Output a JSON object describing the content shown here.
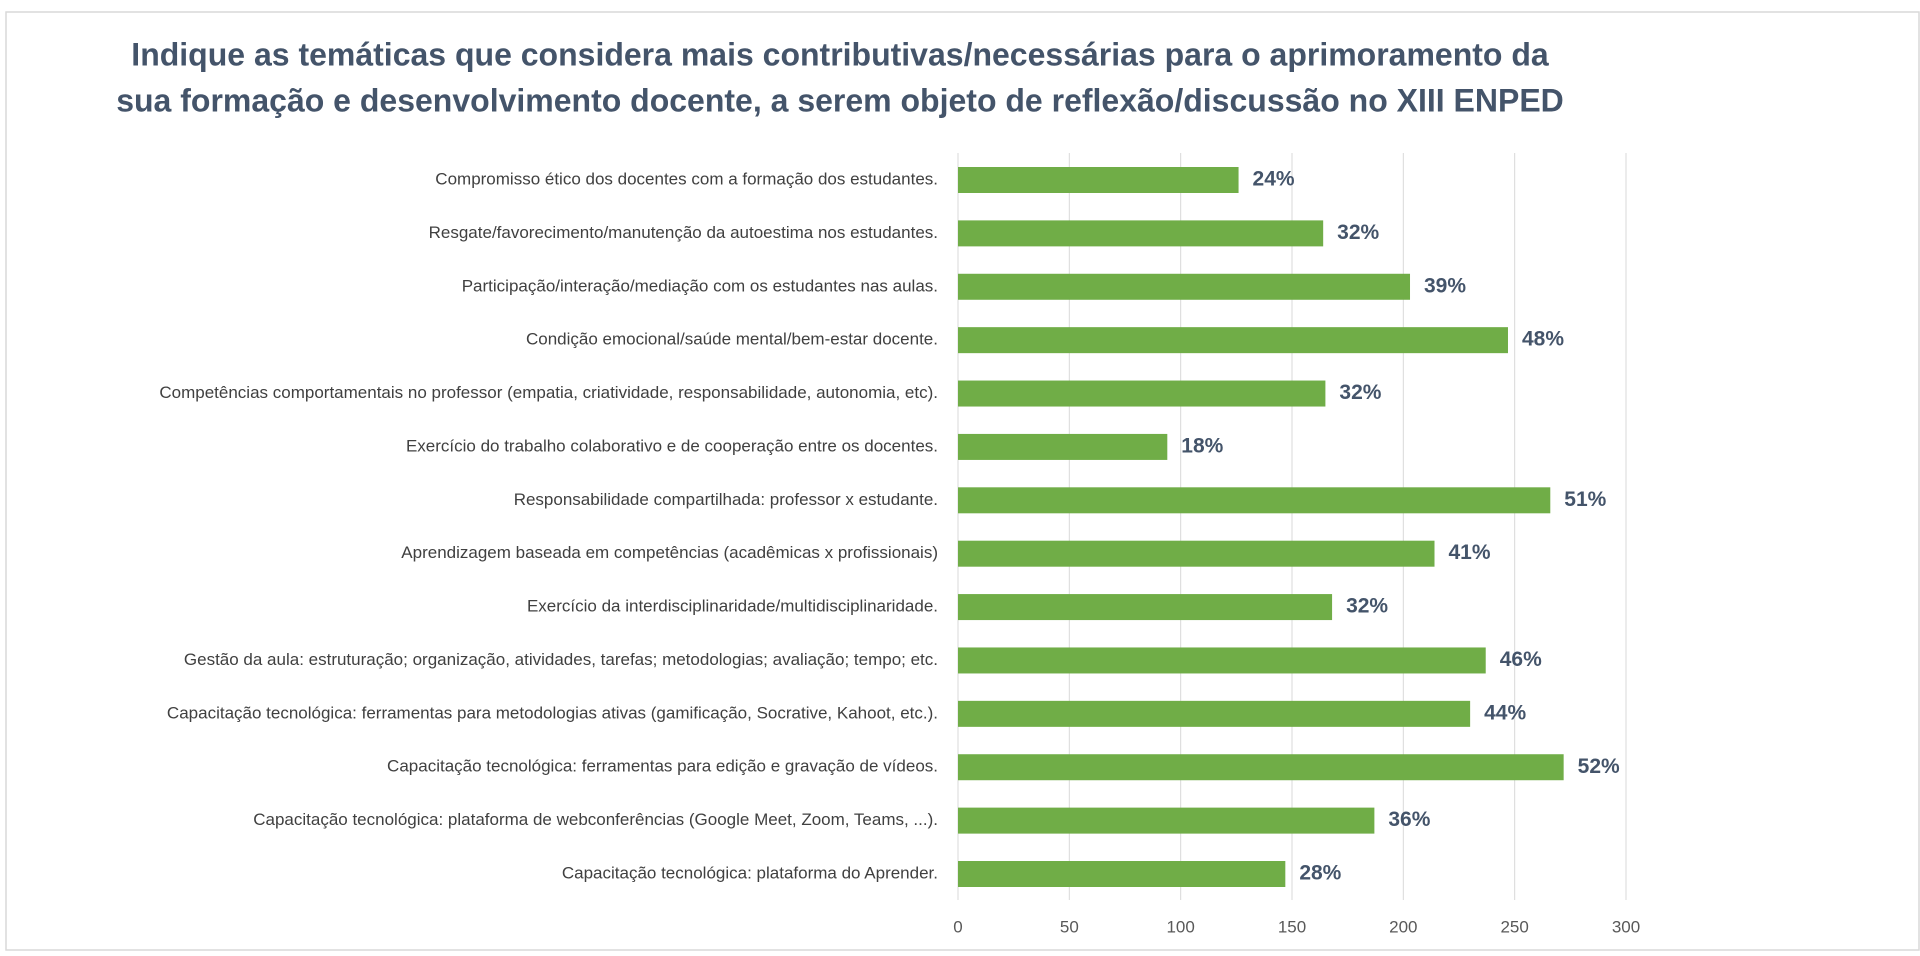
{
  "chart_data": {
    "type": "barh",
    "title": [
      "Indique as temáticas que considera mais contributivas/necessárias para o aprimoramento da",
      "sua formação e desenvolvimento docente, a serem objeto de reflexão/discussão no XIII ENPED"
    ],
    "categories": [
      "Compromisso ético dos docentes com a formação dos estudantes.",
      "Resgate/favorecimento/manutenção da autoestima nos estudantes.",
      "Participação/interação/mediação com os estudantes nas aulas.",
      "Condição emocional/saúde mental/bem-estar docente.",
      "Competências comportamentais no professor (empatia, criatividade, responsabilidade, autonomia, etc).",
      "Exercício do trabalho colaborativo e de cooperação entre os docentes.",
      "Responsabilidade compartilhada: professor x estudante.",
      "Aprendizagem baseada em competências (acadêmicas x profissionais)",
      "Exercício da interdisciplinaridade/multidisciplinaridade.",
      "Gestão da aula: estruturação; organização, atividades, tarefas; metodologias; avaliação; tempo; etc.",
      "Capacitação tecnológica: ferramentas para metodologias ativas (gamificação, Socrative, Kahoot, etc.).",
      "Capacitação tecnológica: ferramentas para edição e gravação de vídeos.",
      "Capacitação tecnológica: plataforma de webconferências (Google Meet, Zoom, Teams, ...).",
      "Capacitação tecnológica: plataforma do Aprender."
    ],
    "values": [
      126,
      164,
      203,
      247,
      165,
      94,
      266,
      214,
      168,
      237,
      230,
      272,
      187,
      147
    ],
    "value_labels": [
      "24%",
      "32%",
      "39%",
      "48%",
      "32%",
      "18%",
      "51%",
      "41%",
      "32%",
      "46%",
      "44%",
      "52%",
      "36%",
      "28%"
    ],
    "color": "#70ad47",
    "xlim": [
      0,
      300
    ],
    "xticks": [
      0,
      50,
      100,
      150,
      200,
      250,
      300
    ],
    "grid": true
  }
}
